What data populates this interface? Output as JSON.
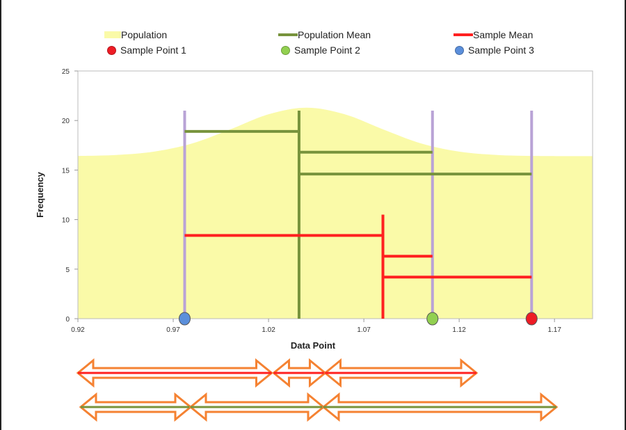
{
  "colors": {
    "population": "#fafaa8",
    "population_mean": "#77933c",
    "sample_mean": "#ff2020",
    "sample_point_1": "#ee1c25",
    "sample_point_2": "#92d050",
    "sample_point_3": "#5b8fdb",
    "sample_lines": "#b9a3d6",
    "arrow_outline": "#f58232"
  },
  "chart_data": {
    "type": "area",
    "xlabel": "Data Point",
    "ylabel": "Frequency",
    "xlim": [
      0.92,
      1.19
    ],
    "ylim": [
      0,
      25
    ],
    "x_ticks": [
      "0.92",
      "0.97",
      "1.02",
      "1.07",
      "1.12",
      "1.17"
    ],
    "y_ticks": [
      "0",
      "5",
      "10",
      "15",
      "20",
      "25"
    ],
    "grid": false,
    "legend": {
      "placement": "top",
      "entries": [
        "Population",
        "Population Mean",
        "Sample Mean",
        "Sample Point 1",
        "Sample Point 2",
        "Sample Point 3"
      ]
    },
    "population": {
      "x": [
        0.92,
        0.94,
        0.96,
        0.98,
        1.0,
        1.02,
        1.04,
        1.06,
        1.08,
        1.1,
        1.12,
        1.14,
        1.16,
        1.19
      ],
      "y": [
        16.42,
        16.52,
        16.86,
        17.69,
        19.11,
        20.63,
        21.3,
        20.63,
        19.11,
        17.69,
        16.86,
        16.52,
        16.42,
        16.4
      ]
    },
    "population_mean": 1.036,
    "sample_mean": 1.08,
    "sample_points": [
      {
        "name": "Sample Point 1",
        "x": 1.158,
        "y": 0
      },
      {
        "name": "Sample Point 2",
        "x": 1.106,
        "y": 0
      },
      {
        "name": "Sample Point 3",
        "x": 0.976,
        "y": 0
      }
    ],
    "sample_line_height": 21,
    "population_mean_height": 21,
    "sample_mean_height": 10.5,
    "population_mean_deviations": [
      {
        "from": 0.976,
        "to": 1.036,
        "y": 18.9
      },
      {
        "from": 1.036,
        "to": 1.106,
        "y": 16.8
      },
      {
        "from": 1.036,
        "to": 1.158,
        "y": 14.6
      }
    ],
    "sample_mean_deviations": [
      {
        "from": 0.976,
        "to": 1.08,
        "y": 8.4
      },
      {
        "from": 1.08,
        "to": 1.106,
        "y": 6.3
      },
      {
        "from": 1.08,
        "to": 1.158,
        "y": 4.2
      }
    ]
  }
}
